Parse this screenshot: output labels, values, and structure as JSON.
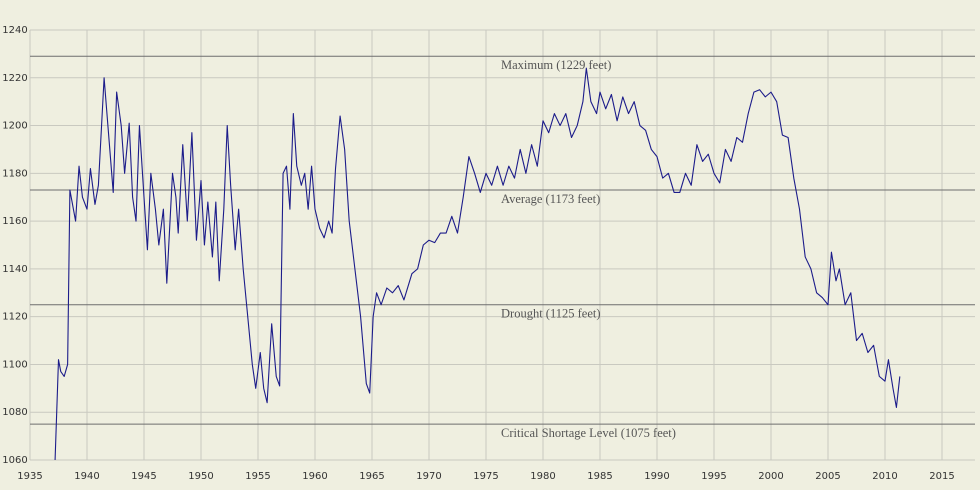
{
  "chart_data": {
    "type": "line",
    "color": "#1c1c8a",
    "grid": true,
    "xlim": [
      1935,
      2015
    ],
    "ylim": [
      1060,
      1240
    ],
    "xticks": [
      1935,
      1940,
      1945,
      1950,
      1955,
      1960,
      1965,
      1970,
      1975,
      1980,
      1985,
      1990,
      1995,
      2000,
      2005,
      2010,
      2015
    ],
    "yticks": [
      1060,
      1080,
      1100,
      1120,
      1140,
      1160,
      1180,
      1200,
      1220,
      1240
    ],
    "reference_lines": [
      {
        "value": 1229,
        "label": "Maximum (1229 feet)"
      },
      {
        "value": 1173,
        "label": "Average (1173 feet)"
      },
      {
        "value": 1125,
        "label": "Drought (1125 feet)"
      },
      {
        "value": 1075,
        "label": "Critical Shortage Level (1075 feet)"
      }
    ],
    "x": [
      1937.2,
      1937.5,
      1937.7,
      1938.0,
      1938.3,
      1938.5,
      1939.0,
      1939.3,
      1939.6,
      1940.0,
      1940.3,
      1940.7,
      1941.0,
      1941.5,
      1942.0,
      1942.3,
      1942.6,
      1943.0,
      1943.3,
      1943.7,
      1944.0,
      1944.3,
      1944.6,
      1945.0,
      1945.3,
      1945.6,
      1946.0,
      1946.3,
      1946.7,
      1947.0,
      1947.5,
      1947.8,
      1948.0,
      1948.4,
      1948.8,
      1949.2,
      1949.6,
      1950.0,
      1950.3,
      1950.6,
      1951.0,
      1951.3,
      1951.6,
      1952.0,
      1952.3,
      1952.6,
      1953.0,
      1953.3,
      1953.7,
      1954.0,
      1954.5,
      1954.8,
      1955.2,
      1955.5,
      1955.8,
      1956.2,
      1956.6,
      1956.9,
      1957.2,
      1957.5,
      1957.8,
      1958.1,
      1958.4,
      1958.8,
      1959.1,
      1959.4,
      1959.7,
      1960.0,
      1960.4,
      1960.8,
      1961.2,
      1961.5,
      1961.8,
      1962.2,
      1962.6,
      1963.0,
      1963.5,
      1964.0,
      1964.5,
      1964.8,
      1965.1,
      1965.4,
      1965.8,
      1966.3,
      1966.8,
      1967.3,
      1967.8,
      1968.5,
      1969.0,
      1969.5,
      1970.0,
      1970.5,
      1971.0,
      1971.5,
      1972.0,
      1972.5,
      1973.0,
      1973.5,
      1974.0,
      1974.5,
      1975.0,
      1975.5,
      1976.0,
      1976.5,
      1977.0,
      1977.5,
      1978.0,
      1978.5,
      1979.0,
      1979.5,
      1980.0,
      1980.5,
      1981.0,
      1981.5,
      1982.0,
      1982.5,
      1983.0,
      1983.5,
      1983.8,
      1984.2,
      1984.7,
      1985.0,
      1985.5,
      1986.0,
      1986.5,
      1987.0,
      1987.5,
      1988.0,
      1988.5,
      1989.0,
      1989.5,
      1990.0,
      1990.5,
      1991.0,
      1991.5,
      1992.0,
      1992.5,
      1993.0,
      1993.5,
      1994.0,
      1994.5,
      1995.0,
      1995.5,
      1996.0,
      1996.5,
      1997.0,
      1997.5,
      1998.0,
      1998.5,
      1999.0,
      1999.5,
      2000.0,
      2000.5,
      2001.0,
      2001.5,
      2002.0,
      2002.5,
      2003.0,
      2003.5,
      2004.0,
      2004.5,
      2005.0,
      2005.3,
      2005.7,
      2006.0,
      2006.5,
      2007.0,
      2007.5,
      2008.0,
      2008.5,
      2009.0,
      2009.5,
      2010.0,
      2010.3,
      2010.7,
      2011.0,
      2011.3
    ],
    "values": [
      1060,
      1102,
      1097,
      1095,
      1100,
      1173,
      1160,
      1183,
      1170,
      1165,
      1182,
      1167,
      1175,
      1220,
      1190,
      1172,
      1214,
      1200,
      1180,
      1201,
      1170,
      1160,
      1200,
      1170,
      1148,
      1180,
      1165,
      1150,
      1165,
      1134,
      1180,
      1170,
      1155,
      1192,
      1160,
      1197,
      1152,
      1177,
      1150,
      1168,
      1145,
      1168,
      1135,
      1165,
      1200,
      1175,
      1148,
      1165,
      1140,
      1125,
      1100,
      1090,
      1105,
      1090,
      1084,
      1117,
      1095,
      1091,
      1180,
      1183,
      1165,
      1205,
      1183,
      1175,
      1180,
      1165,
      1183,
      1165,
      1157,
      1153,
      1160,
      1155,
      1182,
      1204,
      1190,
      1160,
      1140,
      1120,
      1092,
      1088,
      1120,
      1130,
      1125,
      1132,
      1130,
      1133,
      1127,
      1138,
      1140,
      1150,
      1152,
      1151,
      1155,
      1155,
      1162,
      1155,
      1170,
      1187,
      1180,
      1172,
      1180,
      1175,
      1183,
      1175,
      1183,
      1178,
      1190,
      1180,
      1192,
      1183,
      1202,
      1197,
      1205,
      1200,
      1205,
      1195,
      1200,
      1210,
      1224,
      1210,
      1205,
      1214,
      1207,
      1213,
      1202,
      1212,
      1205,
      1210,
      1200,
      1198,
      1190,
      1187,
      1178,
      1180,
      1172,
      1172,
      1180,
      1175,
      1192,
      1185,
      1188,
      1180,
      1176,
      1190,
      1185,
      1195,
      1193,
      1205,
      1214,
      1215,
      1212,
      1214,
      1210,
      1196,
      1195,
      1178,
      1165,
      1145,
      1140,
      1130,
      1128,
      1125,
      1147,
      1135,
      1140,
      1125,
      1130,
      1110,
      1113,
      1105,
      1108,
      1095,
      1093,
      1102,
      1090,
      1082,
      1095
    ]
  }
}
